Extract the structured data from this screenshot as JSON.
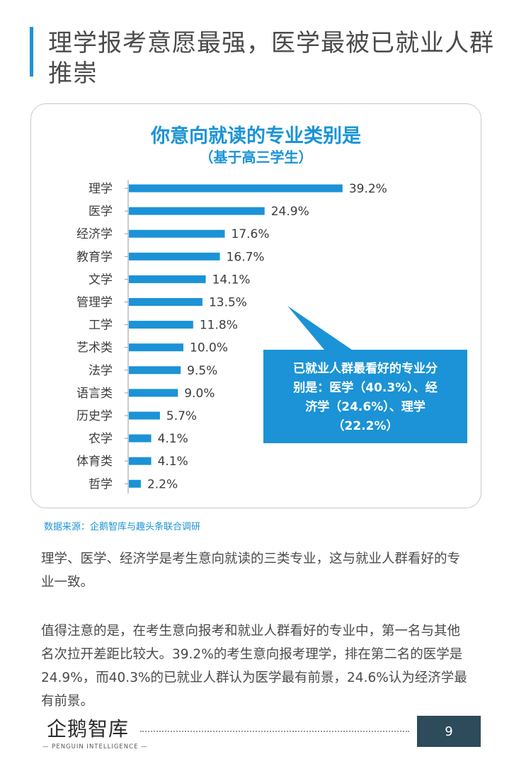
{
  "page_title": "理学报考意愿最强，医学最被已就业人群推崇",
  "chart_data": {
    "type": "bar",
    "orientation": "horizontal",
    "title": "你意向就读的专业类别是",
    "subtitle": "（基于高三学生）",
    "categories": [
      "理学",
      "医学",
      "经济学",
      "教育学",
      "文学",
      "管理学",
      "工学",
      "艺术类",
      "法学",
      "语言类",
      "历史学",
      "农学",
      "体育类",
      "哲学"
    ],
    "values": [
      39.2,
      24.9,
      17.6,
      16.7,
      14.1,
      13.5,
      11.8,
      10.0,
      9.5,
      9.0,
      5.7,
      4.1,
      4.1,
      2.2
    ],
    "value_labels": [
      "39.2%",
      "24.9%",
      "17.6%",
      "16.7%",
      "14.1%",
      "13.5%",
      "11.8%",
      "10.0%",
      "9.5%",
      "9.0%",
      "5.7%",
      "4.1%",
      "4.1%",
      "2.2%"
    ],
    "unit": "%",
    "xlim": [
      0,
      40
    ],
    "grid": false,
    "bar_color": "#1b93d6",
    "callout": "已就业人群最看好的专业分别是：医学（40.3%）、经济学（24.6%）、理学（22.2%）"
  },
  "callout_lines": [
    "已就业人群最看好的专业分",
    "别是：医学（40.3%）、经",
    "济学（24.6%）、理学",
    "（22.2%）"
  ],
  "source": "数据来源：企鹅智库与趣头条联合调研",
  "paragraph1": "理学、医学、经济学是考生意向就读的三类专业，这与就业人群看好的专业一致。",
  "paragraph2": "值得注意的是，在考生意向报考和就业人群看好的专业中，第一名与其他名次拉开差距比较大。39.2%的考生意向报考理学，排在第二名的医学是24.9%，而40.3%的已就业人群认为医学最有前景，24.6%认为经济学最有前景。",
  "logo": {
    "name": "企鹅智库",
    "tagline": "PENGUIN INTELLIGENCE"
  },
  "page_number": "9",
  "colors": {
    "accent": "#1b93d6",
    "page_number_bg": "#2d4b5a"
  }
}
